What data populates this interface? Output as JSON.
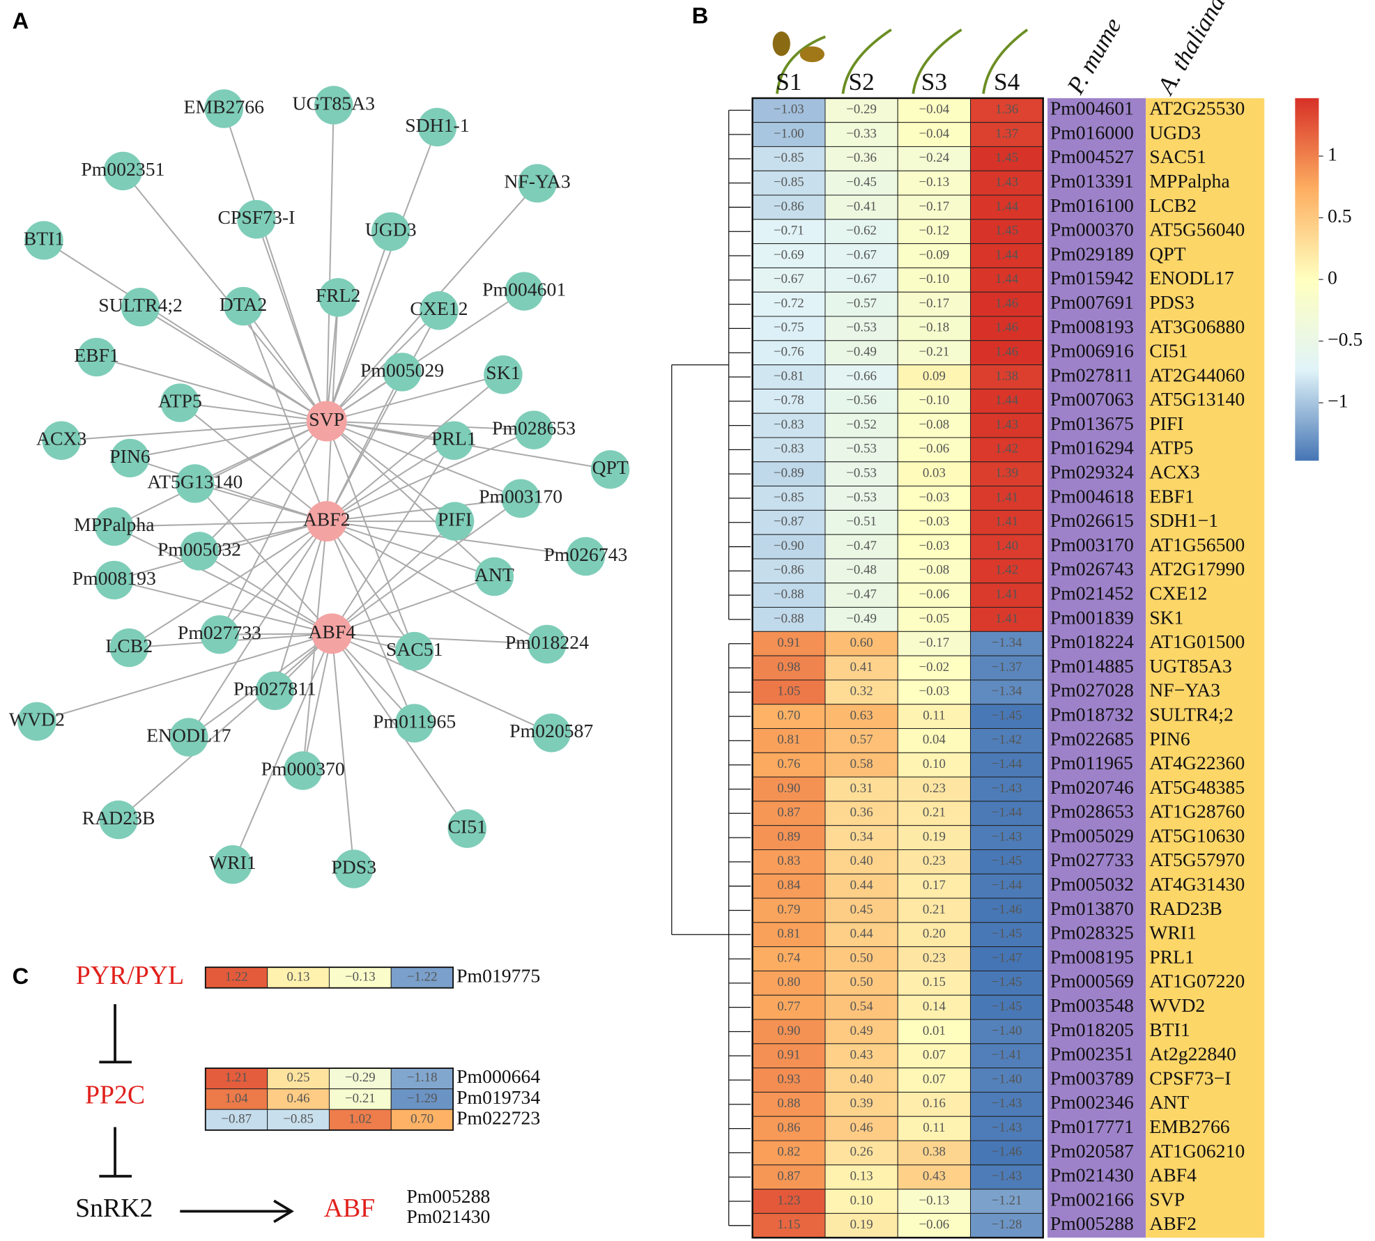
{
  "panel_labels": [
    "A",
    "B",
    "C"
  ],
  "network": {
    "hubs": [
      "SVP",
      "ABF2",
      "ABF4"
    ],
    "nodes": [
      "EMB2766",
      "UGT85A3",
      "SDH1-1",
      "NF-YA3",
      "Pm002351",
      "CPSF73-I",
      "UGD3",
      "BTI1",
      "SULTR4;2",
      "DTA2",
      "FRL2",
      "CXE12",
      "Pm004601",
      "EBF1",
      "ATP5",
      "Pm005029",
      "SK1",
      "ACX3",
      "PIN6",
      "PRL1",
      "Pm028653",
      "QPT",
      "AT5G13140",
      "Pm003170",
      "MPPalpha",
      "PIFI",
      "Pm005032",
      "Pm026743",
      "Pm008193",
      "ANT",
      "LCB2",
      "Pm027733",
      "SAC51",
      "Pm018224",
      "WVD2",
      "Pm027811",
      "ENODL17",
      "Pm011965",
      "Pm020587",
      "Pm000370",
      "RAD23B",
      "CI51",
      "WRI1",
      "PDS3"
    ]
  },
  "chart_data": {
    "type": "heatmap",
    "columns": [
      "S1",
      "S2",
      "S3",
      "S4"
    ],
    "row_groups": [
      "P. mume",
      "A. thaliana"
    ],
    "pm": [
      "Pm004601",
      "Pm016000",
      "Pm004527",
      "Pm013391",
      "Pm016100",
      "Pm000370",
      "Pm029189",
      "Pm015942",
      "Pm007691",
      "Pm008193",
      "Pm006916",
      "Pm027811",
      "Pm007063",
      "Pm013675",
      "Pm016294",
      "Pm029324",
      "Pm004618",
      "Pm026615",
      "Pm003170",
      "Pm026743",
      "Pm021452",
      "Pm001839",
      "Pm018224",
      "Pm014885",
      "Pm027028",
      "Pm018732",
      "Pm022685",
      "Pm011965",
      "Pm020746",
      "Pm028653",
      "Pm005029",
      "Pm027733",
      "Pm005032",
      "Pm013870",
      "Pm028325",
      "Pm008195",
      "Pm000569",
      "Pm003548",
      "Pm018205",
      "Pm002351",
      "Pm003789",
      "Pm002346",
      "Pm017771",
      "Pm020587",
      "Pm021430",
      "Pm002166",
      "Pm005288"
    ],
    "at": [
      "AT2G25530",
      "UGD3",
      "SAC51",
      "MPPalpha",
      "LCB2",
      "AT5G56040",
      "QPT",
      "ENODL17",
      "PDS3",
      "AT3G06880",
      "CI51",
      "AT2G44060",
      "AT5G13140",
      "PIFI",
      "ATP5",
      "ACX3",
      "EBF1",
      "SDH1−1",
      "AT1G56500",
      "AT2G17990",
      "CXE12",
      "SK1",
      "AT1G01500",
      "UGT85A3",
      "NF−YA3",
      "SULTR4;2",
      "PIN6",
      "AT4G22360",
      "AT5G48385",
      "AT1G28760",
      "AT5G10630",
      "AT5G57970",
      "AT4G31430",
      "RAD23B",
      "WRI1",
      "PRL1",
      "AT1G07220",
      "WVD2",
      "BTI1",
      "At2g22840",
      "CPSF73−I",
      "ANT",
      "EMB2766",
      "AT1G06210",
      "ABF4",
      "SVP",
      "ABF2"
    ],
    "values": [
      [
        -1.03,
        -0.29,
        -0.04,
        1.36
      ],
      [
        -1.0,
        -0.33,
        -0.04,
        1.37
      ],
      [
        -0.85,
        -0.36,
        -0.24,
        1.45
      ],
      [
        -0.85,
        -0.45,
        -0.13,
        1.43
      ],
      [
        -0.86,
        -0.41,
        -0.17,
        1.44
      ],
      [
        -0.71,
        -0.62,
        -0.12,
        1.45
      ],
      [
        -0.69,
        -0.67,
        -0.09,
        1.44
      ],
      [
        -0.67,
        -0.67,
        -0.1,
        1.44
      ],
      [
        -0.72,
        -0.57,
        -0.17,
        1.46
      ],
      [
        -0.75,
        -0.53,
        -0.18,
        1.46
      ],
      [
        -0.76,
        -0.49,
        -0.21,
        1.46
      ],
      [
        -0.81,
        -0.66,
        0.09,
        1.38
      ],
      [
        -0.78,
        -0.56,
        -0.1,
        1.44
      ],
      [
        -0.83,
        -0.52,
        -0.08,
        1.43
      ],
      [
        -0.83,
        -0.53,
        -0.06,
        1.42
      ],
      [
        -0.89,
        -0.53,
        0.03,
        1.39
      ],
      [
        -0.85,
        -0.53,
        -0.03,
        1.41
      ],
      [
        -0.87,
        -0.51,
        -0.03,
        1.41
      ],
      [
        -0.9,
        -0.47,
        -0.03,
        1.4
      ],
      [
        -0.86,
        -0.48,
        -0.08,
        1.42
      ],
      [
        -0.88,
        -0.47,
        -0.06,
        1.41
      ],
      [
        -0.88,
        -0.49,
        -0.05,
        1.41
      ],
      [
        0.91,
        0.6,
        -0.17,
        -1.34
      ],
      [
        0.98,
        0.41,
        -0.02,
        -1.37
      ],
      [
        1.05,
        0.32,
        -0.03,
        -1.34
      ],
      [
        0.7,
        0.63,
        0.11,
        -1.45
      ],
      [
        0.81,
        0.57,
        0.04,
        -1.42
      ],
      [
        0.76,
        0.58,
        0.1,
        -1.44
      ],
      [
        0.9,
        0.31,
        0.23,
        -1.43
      ],
      [
        0.87,
        0.36,
        0.21,
        -1.44
      ],
      [
        0.89,
        0.34,
        0.19,
        -1.43
      ],
      [
        0.83,
        0.4,
        0.23,
        -1.45
      ],
      [
        0.84,
        0.44,
        0.17,
        -1.44
      ],
      [
        0.79,
        0.45,
        0.21,
        -1.46
      ],
      [
        0.81,
        0.44,
        0.2,
        -1.45
      ],
      [
        0.74,
        0.5,
        0.23,
        -1.47
      ],
      [
        0.8,
        0.5,
        0.15,
        -1.45
      ],
      [
        0.77,
        0.54,
        0.14,
        -1.45
      ],
      [
        0.9,
        0.49,
        0.01,
        -1.4
      ],
      [
        0.91,
        0.43,
        0.07,
        -1.41
      ],
      [
        0.93,
        0.4,
        0.07,
        -1.4
      ],
      [
        0.88,
        0.39,
        0.16,
        -1.43
      ],
      [
        0.86,
        0.46,
        0.11,
        -1.43
      ],
      [
        0.82,
        0.26,
        0.38,
        -1.46
      ],
      [
        0.87,
        0.13,
        0.43,
        -1.43
      ],
      [
        1.23,
        0.1,
        -0.13,
        -1.21
      ],
      [
        1.15,
        0.19,
        -0.06,
        -1.28
      ]
    ],
    "value_labels": [
      [
        "−1.03",
        "−0.29",
        "−0.04",
        "1.36"
      ],
      [
        "−1.00",
        "−0.33",
        "−0.04",
        "1.37"
      ],
      [
        "−0.85",
        "−0.36",
        "−0.24",
        "1.45"
      ],
      [
        "−0.85",
        "−0.45",
        "−0.13",
        "1.43"
      ],
      [
        "−0.86",
        "−0.41",
        "−0.17",
        "1.44"
      ],
      [
        "−0.71",
        "−0.62",
        "−0.12",
        "1.45"
      ],
      [
        "−0.69",
        "−0.67",
        "−0.09",
        "1.44"
      ],
      [
        "−0.67",
        "−0.67",
        "−0.10",
        "1.44"
      ],
      [
        "−0.72",
        "−0.57",
        "−0.17",
        "1.46"
      ],
      [
        "−0.75",
        "−0.53",
        "−0.18",
        "1.46"
      ],
      [
        "−0.76",
        "−0.49",
        "−0.21",
        "1.46"
      ],
      [
        "−0.81",
        "−0.66",
        "0.09",
        "1.38"
      ],
      [
        "−0.78",
        "−0.56",
        "−0.10",
        "1.44"
      ],
      [
        "−0.83",
        "−0.52",
        "−0.08",
        "1.43"
      ],
      [
        "−0.83",
        "−0.53",
        "−0.06",
        "1.42"
      ],
      [
        "−0.89",
        "−0.53",
        "0.03",
        "1.39"
      ],
      [
        "−0.85",
        "−0.53",
        "−0.03",
        "1.41"
      ],
      [
        "−0.87",
        "−0.51",
        "−0.03",
        "1.41"
      ],
      [
        "−0.90",
        "−0.47",
        "−0.03",
        "1.40"
      ],
      [
        "−0.86",
        "−0.48",
        "−0.08",
        "1.42"
      ],
      [
        "−0.88",
        "−0.47",
        "−0.06",
        "1.41"
      ],
      [
        "−0.88",
        "−0.49",
        "−0.05",
        "1.41"
      ],
      [
        "0.91",
        "0.60",
        "−0.17",
        "−1.34"
      ],
      [
        "0.98",
        "0.41",
        "−0.02",
        "−1.37"
      ],
      [
        "1.05",
        "0.32",
        "−0.03",
        "−1.34"
      ],
      [
        "0.70",
        "0.63",
        "0.11",
        "−1.45"
      ],
      [
        "0.81",
        "0.57",
        "0.04",
        "−1.42"
      ],
      [
        "0.76",
        "0.58",
        "0.10",
        "−1.44"
      ],
      [
        "0.90",
        "0.31",
        "0.23",
        "−1.43"
      ],
      [
        "0.87",
        "0.36",
        "0.21",
        "−1.44"
      ],
      [
        "0.89",
        "0.34",
        "0.19",
        "−1.43"
      ],
      [
        "0.83",
        "0.40",
        "0.23",
        "−1.45"
      ],
      [
        "0.84",
        "0.44",
        "0.17",
        "−1.44"
      ],
      [
        "0.79",
        "0.45",
        "0.21",
        "−1.46"
      ],
      [
        "0.81",
        "0.44",
        "0.20",
        "−1.45"
      ],
      [
        "0.74",
        "0.50",
        "0.23",
        "−1.47"
      ],
      [
        "0.80",
        "0.50",
        "0.15",
        "−1.45"
      ],
      [
        "0.77",
        "0.54",
        "0.14",
        "−1.45"
      ],
      [
        "0.90",
        "0.49",
        "0.01",
        "−1.40"
      ],
      [
        "0.91",
        "0.43",
        "0.07",
        "−1.41"
      ],
      [
        "0.93",
        "0.40",
        "0.07",
        "−1.40"
      ],
      [
        "0.88",
        "0.39",
        "0.16",
        "−1.43"
      ],
      [
        "0.86",
        "0.46",
        "0.11",
        "−1.43"
      ],
      [
        "0.82",
        "0.26",
        "0.38",
        "−1.46"
      ],
      [
        "0.87",
        "0.13",
        "0.43",
        "−1.43"
      ],
      [
        "1.23",
        "0.10",
        "−0.13",
        "−1.21"
      ],
      [
        "1.15",
        "0.19",
        "−0.06",
        "−1.28"
      ]
    ],
    "colormap": [
      "#4575b4",
      "#e0f3f8",
      "#ffffbf",
      "#fdae61",
      "#d73027"
    ],
    "colorbar": {
      "lim": [
        -1.47,
        1.47
      ],
      "ticks": [
        1,
        0.5,
        0,
        {
          "value": -0.5,
          "label": "−0.5"
        },
        {
          "value": -1,
          "label": "−1"
        }
      ]
    }
  },
  "pathway": {
    "steps": [
      "PYR/PYL",
      "PP2C",
      "SnRK2",
      "ABF"
    ],
    "abf_genes": [
      "Pm005288",
      "Pm021430"
    ],
    "heatmap": {
      "genes": [
        "Pm019775",
        "Pm000664",
        "Pm019734",
        "Pm022723"
      ],
      "values": [
        [
          1.22,
          0.13,
          -0.13,
          -1.22
        ],
        [
          1.21,
          0.25,
          -0.29,
          -1.18
        ],
        [
          1.04,
          0.46,
          -0.21,
          -1.29
        ],
        [
          -0.87,
          -0.85,
          1.02,
          0.7
        ]
      ],
      "value_labels": [
        [
          "1.22",
          "0.13",
          "−0.13",
          "−1.22"
        ],
        [
          "1.21",
          "0.25",
          "−0.29",
          "−1.18"
        ],
        [
          "1.04",
          "0.46",
          "−0.21",
          "−1.29"
        ],
        [
          "−0.87",
          "−0.85",
          "1.02",
          "0.70"
        ]
      ]
    }
  }
}
